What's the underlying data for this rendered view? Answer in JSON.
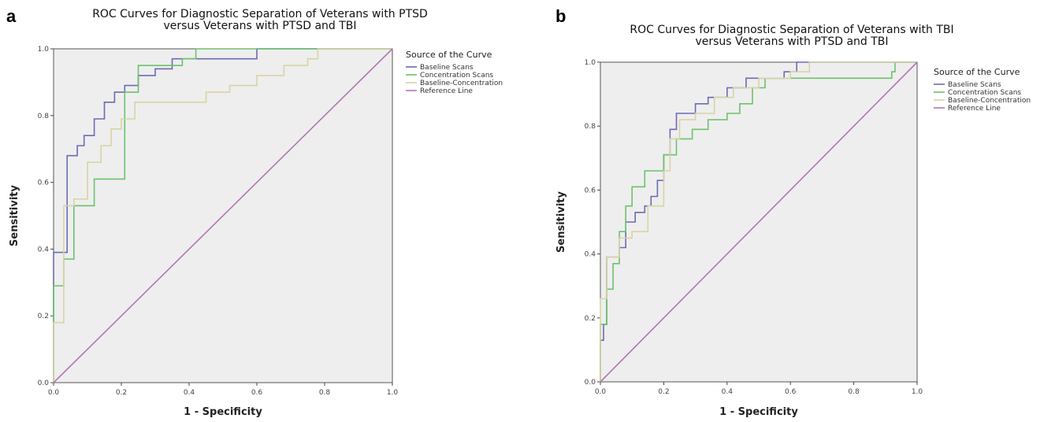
{
  "colors": {
    "baseline": "#6b6bb5",
    "concentration": "#6cc26c",
    "baseline_concentration": "#d8d4a6",
    "reference": "#b574b5"
  },
  "chart_data": [
    {
      "type": "line",
      "panel": "a",
      "title": [
        "ROC Curves for Diagnostic Separation of Veterans with PTSD",
        "versus Veterans with PTSD and TBI"
      ],
      "xlabel": "1 - Specificity",
      "ylabel": "Sensitivity",
      "xlim": [
        0,
        1
      ],
      "ylim": [
        0,
        1
      ],
      "xticks": [
        "0.0",
        "0.2",
        "0.4",
        "0.6",
        "0.8",
        "1.0"
      ],
      "yticks": [
        "0.0",
        "0.2",
        "0.4",
        "0.6",
        "0.8",
        "1.0"
      ],
      "legend_title": "Source of the Curve",
      "legend_position": "right",
      "series": [
        {
          "name": "Baseline Scans",
          "color_key": "baseline",
          "x": [
            0,
            0,
            0.04,
            0.04,
            0.07,
            0.07,
            0.09,
            0.09,
            0.12,
            0.12,
            0.15,
            0.15,
            0.18,
            0.18,
            0.21,
            0.21,
            0.25,
            0.25,
            0.3,
            0.3,
            0.35,
            0.35,
            0.42,
            0.42,
            0.6,
            0.6,
            1.0
          ],
          "y": [
            0,
            0.39,
            0.39,
            0.68,
            0.68,
            0.71,
            0.71,
            0.74,
            0.74,
            0.79,
            0.79,
            0.84,
            0.84,
            0.87,
            0.87,
            0.89,
            0.89,
            0.92,
            0.92,
            0.94,
            0.94,
            0.97,
            0.97,
            0.97,
            0.97,
            1.0,
            1.0
          ]
        },
        {
          "name": "Concentration Scans",
          "color_key": "concentration",
          "x": [
            0,
            0,
            0.03,
            0.03,
            0.06,
            0.06,
            0.09,
            0.09,
            0.12,
            0.12,
            0.21,
            0.21,
            0.25,
            0.25,
            0.34,
            0.34,
            0.38,
            0.38,
            0.42,
            0.42,
            1.0
          ],
          "y": [
            0,
            0.29,
            0.29,
            0.37,
            0.37,
            0.53,
            0.53,
            0.53,
            0.53,
            0.61,
            0.61,
            0.87,
            0.87,
            0.95,
            0.95,
            0.95,
            0.95,
            0.97,
            0.97,
            1.0,
            1.0
          ]
        },
        {
          "name": "Baseline-Concentration",
          "color_key": "baseline_concentration",
          "x": [
            0,
            0,
            0.03,
            0.03,
            0.06,
            0.06,
            0.1,
            0.1,
            0.14,
            0.14,
            0.17,
            0.17,
            0.2,
            0.2,
            0.24,
            0.24,
            0.38,
            0.38,
            0.45,
            0.45,
            0.52,
            0.52,
            0.6,
            0.6,
            0.68,
            0.68,
            0.75,
            0.75,
            0.78,
            0.78,
            1.0
          ],
          "y": [
            0,
            0.18,
            0.18,
            0.53,
            0.53,
            0.55,
            0.55,
            0.66,
            0.66,
            0.71,
            0.71,
            0.76,
            0.76,
            0.79,
            0.79,
            0.84,
            0.84,
            0.84,
            0.84,
            0.87,
            0.87,
            0.89,
            0.89,
            0.92,
            0.92,
            0.95,
            0.95,
            0.97,
            0.97,
            1.0,
            1.0
          ]
        },
        {
          "name": "Reference Line",
          "color_key": "reference",
          "x": [
            0,
            1
          ],
          "y": [
            0,
            1
          ]
        }
      ]
    },
    {
      "type": "line",
      "panel": "b",
      "title": [
        "ROC Curves for Diagnostic Separation of Veterans with TBI",
        "versus Veterans with PTSD and TBI"
      ],
      "xlabel": "1 - Specificity",
      "ylabel": "Sensitivity",
      "xlim": [
        0,
        1
      ],
      "ylim": [
        0,
        1
      ],
      "xticks": [
        "0.0",
        "0.2",
        "0.4",
        "0.6",
        "0.8",
        "1.0"
      ],
      "yticks": [
        "0.0",
        "0.2",
        "0.4",
        "0.6",
        "0.8",
        "1.0"
      ],
      "legend_title": "Source of the Curve",
      "legend_position": "right",
      "series": [
        {
          "name": "Baseline Scans",
          "color_key": "baseline",
          "x": [
            0,
            0,
            0.01,
            0.01,
            0.02,
            0.02,
            0.06,
            0.06,
            0.08,
            0.08,
            0.11,
            0.11,
            0.14,
            0.14,
            0.16,
            0.16,
            0.18,
            0.18,
            0.2,
            0.2,
            0.22,
            0.22,
            0.24,
            0.24,
            0.26,
            0.26,
            0.3,
            0.3,
            0.34,
            0.34,
            0.37,
            0.37,
            0.4,
            0.4,
            0.46,
            0.46,
            0.5,
            0.5,
            0.58,
            0.58,
            0.62,
            0.62,
            1.0
          ],
          "y": [
            0,
            0.13,
            0.13,
            0.18,
            0.18,
            0.39,
            0.39,
            0.42,
            0.42,
            0.5,
            0.5,
            0.53,
            0.53,
            0.55,
            0.55,
            0.58,
            0.58,
            0.63,
            0.63,
            0.71,
            0.71,
            0.79,
            0.79,
            0.84,
            0.84,
            0.84,
            0.84,
            0.87,
            0.87,
            0.89,
            0.89,
            0.89,
            0.89,
            0.92,
            0.92,
            0.95,
            0.95,
            0.95,
            0.95,
            0.97,
            0.97,
            1.0,
            1.0
          ]
        },
        {
          "name": "Concentration Scans",
          "color_key": "concentration",
          "x": [
            0,
            0,
            0.02,
            0.02,
            0.04,
            0.04,
            0.06,
            0.06,
            0.08,
            0.08,
            0.1,
            0.1,
            0.14,
            0.14,
            0.2,
            0.2,
            0.24,
            0.24,
            0.29,
            0.29,
            0.34,
            0.34,
            0.4,
            0.4,
            0.44,
            0.44,
            0.48,
            0.48,
            0.52,
            0.52,
            0.92,
            0.92,
            0.93,
            0.93,
            1.0
          ],
          "y": [
            0,
            0.18,
            0.18,
            0.29,
            0.29,
            0.37,
            0.37,
            0.47,
            0.47,
            0.55,
            0.55,
            0.61,
            0.61,
            0.66,
            0.66,
            0.71,
            0.71,
            0.76,
            0.76,
            0.79,
            0.79,
            0.82,
            0.82,
            0.84,
            0.84,
            0.87,
            0.87,
            0.92,
            0.92,
            0.95,
            0.95,
            0.97,
            0.97,
            1.0,
            1.0
          ]
        },
        {
          "name": "Baseline-Concentration",
          "color_key": "baseline_concentration",
          "x": [
            0,
            0,
            0.02,
            0.02,
            0.06,
            0.06,
            0.1,
            0.1,
            0.15,
            0.15,
            0.2,
            0.2,
            0.22,
            0.22,
            0.25,
            0.25,
            0.3,
            0.3,
            0.36,
            0.36,
            0.42,
            0.42,
            0.5,
            0.5,
            0.6,
            0.6,
            0.66,
            0.66,
            1.0
          ],
          "y": [
            0,
            0.26,
            0.26,
            0.39,
            0.39,
            0.45,
            0.45,
            0.47,
            0.47,
            0.55,
            0.55,
            0.66,
            0.66,
            0.76,
            0.76,
            0.82,
            0.82,
            0.84,
            0.84,
            0.89,
            0.89,
            0.92,
            0.92,
            0.95,
            0.95,
            0.97,
            0.97,
            1.0,
            1.0
          ]
        },
        {
          "name": "Reference Line",
          "color_key": "reference",
          "x": [
            0,
            1
          ],
          "y": [
            0,
            1
          ]
        }
      ]
    }
  ]
}
